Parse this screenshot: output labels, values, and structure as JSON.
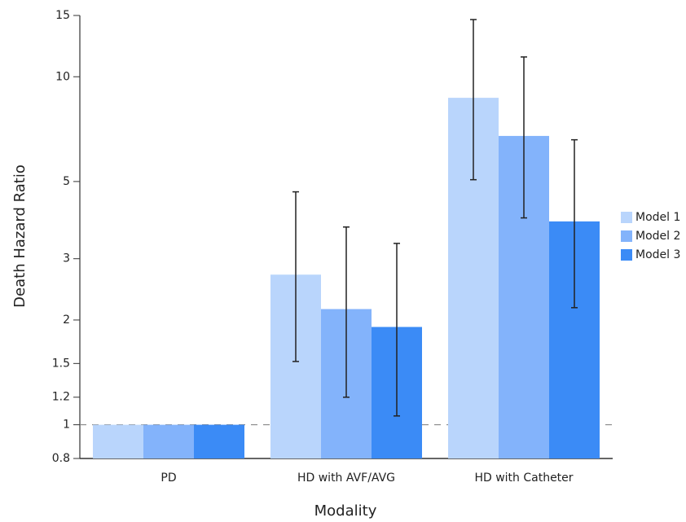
{
  "chart_data": {
    "type": "bar",
    "x_label": "Modality",
    "y_label": "Death Hazard Ratio",
    "categories": [
      "PD",
      "HD with AVF/AVG",
      "HD with Catheter"
    ],
    "series": [
      {
        "name": "Model 1",
        "color": "#b9d5fc",
        "values": [
          1.0,
          2.7,
          8.7
        ],
        "ci_low": [
          null,
          1.52,
          5.06
        ],
        "ci_high": [
          null,
          4.67,
          14.6
        ]
      },
      {
        "name": "Model 2",
        "color": "#83b3fb",
        "values": [
          1.0,
          2.15,
          6.76
        ],
        "ci_low": [
          null,
          1.2,
          3.93
        ],
        "ci_high": [
          null,
          3.7,
          11.4
        ]
      },
      {
        "name": "Model 3",
        "color": "#3b8bf6",
        "values": [
          1.0,
          1.91,
          3.84
        ],
        "ci_low": [
          null,
          1.06,
          2.17
        ],
        "ci_high": [
          null,
          3.32,
          6.59
        ]
      }
    ],
    "log_scale": true,
    "ylim": [
      0.8,
      15
    ],
    "yticks": [
      0.8,
      1,
      1.2,
      1.5,
      2,
      3,
      5,
      10,
      15
    ],
    "reference_line": 1,
    "legend": "right"
  }
}
